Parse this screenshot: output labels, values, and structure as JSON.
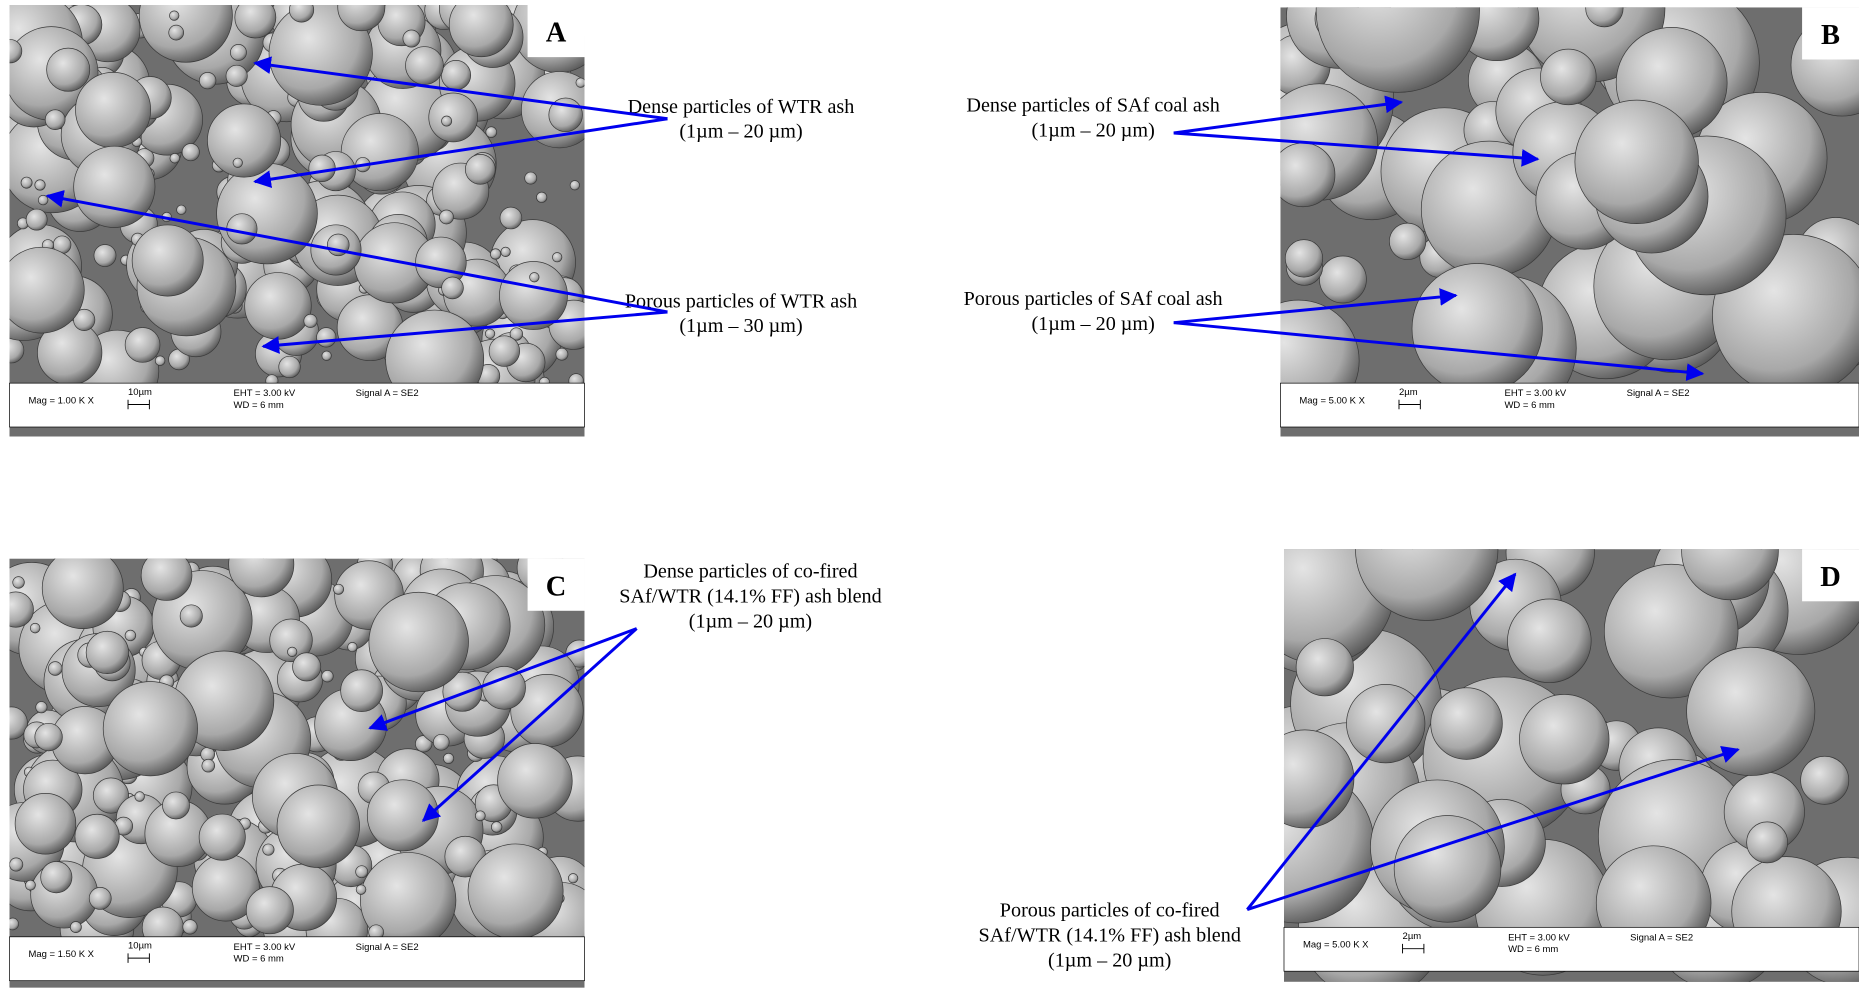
{
  "panels": [
    {
      "label": "A",
      "info": {
        "mag": "Mag =  1.00 K X",
        "scale": "10µm",
        "eht": "EHT =  3.00 kV",
        "wd": "WD =   6 mm",
        "signal": "Signal A = SE2"
      },
      "annotations": [
        {
          "lines": [
            "Dense particles of WTR ash",
            "(1µm – 20 µm)"
          ]
        },
        {
          "lines": [
            "Porous particles of WTR ash",
            "(1µm – 30 µm)"
          ]
        }
      ]
    },
    {
      "label": "B",
      "info": {
        "mag": "Mag =  5.00 K X",
        "scale": "2µm",
        "eht": "EHT =  3.00 kV",
        "wd": "WD =   6 mm",
        "signal": "Signal A = SE2"
      },
      "annotations": [
        {
          "lines": [
            "Dense particles of SAf coal ash",
            "(1µm – 20 µm)"
          ]
        },
        {
          "lines": [
            "Porous particles of SAf coal ash",
            "(1µm – 20 µm)"
          ]
        }
      ]
    },
    {
      "label": "C",
      "info": {
        "mag": "Mag =  1.50 K X",
        "scale": "10µm",
        "eht": "EHT =  3.00 kV",
        "wd": "WD =   6 mm",
        "signal": "Signal A = SE2"
      },
      "annotations": [
        {
          "lines": [
            "Dense particles of co-fired",
            "SAf/WTR (14.1% FF) ash blend",
            "(1µm – 20 µm)"
          ]
        }
      ]
    },
    {
      "label": "D",
      "info": {
        "mag": "Mag =  5.00 K X",
        "scale": "2µm",
        "eht": "EHT =  3.00 kV",
        "wd": "WD =   6 mm",
        "signal": "Signal A = SE2"
      },
      "annotations": [
        {
          "lines": [
            "Porous particles of co-fired",
            "SAf/WTR (14.1% FF) ash blend",
            "(1µm – 20 µm)"
          ]
        }
      ]
    }
  ]
}
